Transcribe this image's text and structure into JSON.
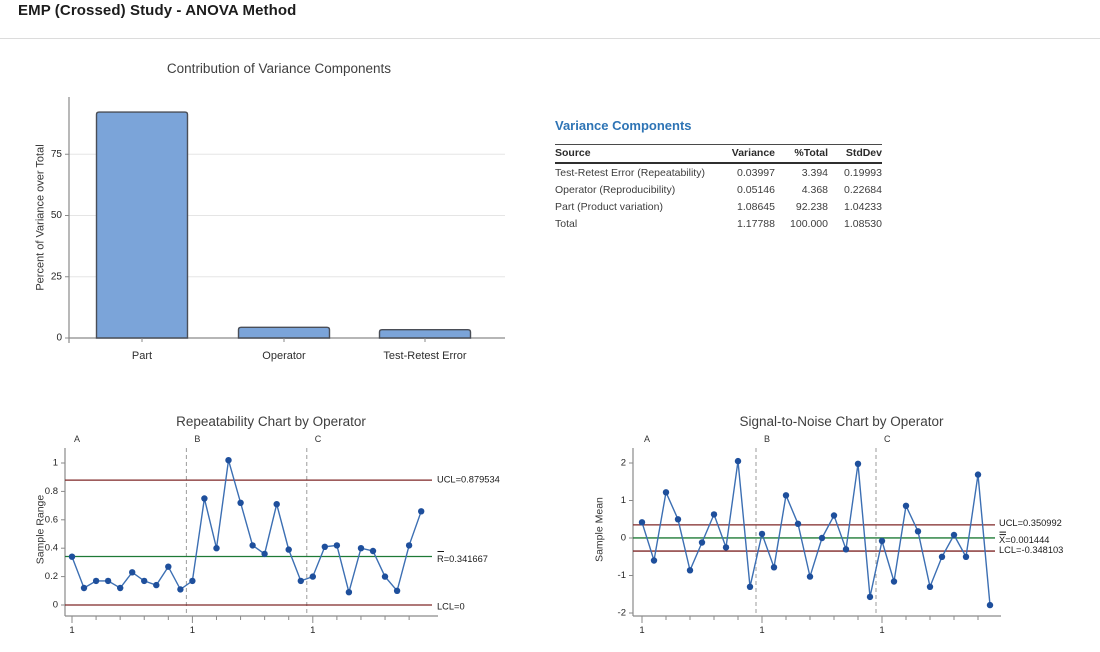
{
  "page": {
    "title": "EMP (Crossed) Study - ANOVA Method"
  },
  "colors": {
    "accent_heading": "#2E74B5",
    "bar_fill": "#7BA4D9",
    "bar_stroke": "#4A4E57",
    "series_line": "#3C6FB3",
    "series_point": "#1E4F9C",
    "limit_line": "#7F2727",
    "center_line": "#1E7A36",
    "divider": "#9B9B9B",
    "axis": "#8A8A8A",
    "grid": "#E5E5E5",
    "text_dark": "#262626",
    "title_text": "#3F3F3F"
  },
  "variance_table": {
    "title": "Variance Components",
    "columns": [
      "Source",
      "Variance",
      "%Total",
      "StdDev"
    ],
    "rows": [
      [
        "Test-Retest Error (Repeatability)",
        "0.03997",
        "3.394",
        "0.19993"
      ],
      [
        "Operator (Reproducibility)",
        "0.05146",
        "4.368",
        "0.22684"
      ],
      [
        "Part (Product variation)",
        "1.08645",
        "92.238",
        "1.04233"
      ],
      [
        "Total",
        "1.17788",
        "100.000",
        "1.08530"
      ]
    ]
  },
  "chart_data": [
    {
      "type": "bar",
      "title": "Contribution of Variance Components",
      "xlabel": "",
      "ylabel": "Percent of Variance over Total",
      "categories": [
        "Part",
        "Operator",
        "Test-Retest Error"
      ],
      "values": [
        92.238,
        4.368,
        3.394
      ],
      "yticks": [
        0,
        25,
        50,
        75
      ],
      "ylim": [
        0,
        100
      ],
      "grid": true
    },
    {
      "type": "line",
      "subtype": "control-chart",
      "title": "Repeatability Chart by Operator",
      "ylabel": "Sample Range",
      "groups": [
        "A",
        "B",
        "C"
      ],
      "group_x_tick_label": "1",
      "yticks": [
        0,
        0.2,
        0.4,
        0.6,
        0.8,
        1
      ],
      "ytick_labels": [
        "0",
        "0.2",
        "0.4",
        "0.6",
        "0.8",
        "1"
      ],
      "ylim": [
        -0.07,
        1.1
      ],
      "limits": {
        "ucl": {
          "value": 0.879534,
          "label": "UCL=0.879534"
        },
        "center": {
          "value": 0.341667,
          "label": "R=0.341667",
          "symbol_overbar": "single"
        },
        "lcl": {
          "value": 0,
          "label": "LCL=0"
        }
      },
      "legend_position": "right-of-plot",
      "series": [
        {
          "name": "A",
          "values": [
            0.34,
            0.12,
            0.17,
            0.17,
            0.12,
            0.23,
            0.17,
            0.14,
            0.27,
            0.11
          ]
        },
        {
          "name": "B",
          "values": [
            0.17,
            0.75,
            0.4,
            1.02,
            0.72,
            0.42,
            0.36,
            0.71,
            0.39,
            0.17
          ]
        },
        {
          "name": "C",
          "values": [
            0.2,
            0.41,
            0.42,
            0.09,
            0.4,
            0.38,
            0.2,
            0.1,
            0.42,
            0.66
          ]
        }
      ]
    },
    {
      "type": "line",
      "subtype": "control-chart",
      "title": "Signal-to-Noise Chart by Operator",
      "ylabel": "Sample Mean",
      "groups": [
        "A",
        "B",
        "C"
      ],
      "group_x_tick_label": "1",
      "yticks": [
        -2,
        -1,
        0,
        1,
        2
      ],
      "ytick_labels": [
        "-2",
        "-1",
        "0",
        "1",
        "2"
      ],
      "ylim": [
        -2.15,
        2.4
      ],
      "limits": {
        "ucl": {
          "value": 0.350992,
          "label": "UCL=0.350992"
        },
        "center": {
          "value": 0.001444,
          "label": "X=0.001444",
          "symbol_overbar": "double"
        },
        "lcl": {
          "value": -0.348103,
          "label": "LCL=-0.348103"
        }
      },
      "legend_position": "right-of-plot",
      "series": [
        {
          "name": "A",
          "values": [
            0.42,
            -0.6,
            1.22,
            0.5,
            -0.86,
            -0.12,
            0.63,
            -0.25,
            2.05,
            -1.3
          ]
        },
        {
          "name": "B",
          "values": [
            0.11,
            -0.78,
            1.14,
            0.38,
            -1.03,
            0.0,
            0.6,
            -0.3,
            1.98,
            -1.57
          ]
        },
        {
          "name": "C",
          "values": [
            -0.08,
            -1.16,
            0.86,
            0.18,
            -1.3,
            -0.5,
            0.08,
            -0.5,
            1.69,
            -1.79
          ]
        }
      ]
    }
  ]
}
